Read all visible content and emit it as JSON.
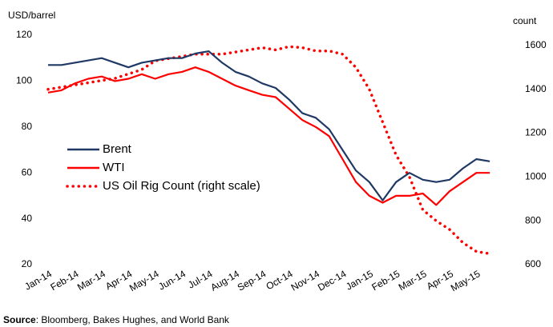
{
  "chart_data": {
    "type": "line",
    "y_axis_label": "USD/barrel",
    "y2_axis_label": "count",
    "categories": [
      "Jan-14",
      null,
      "Feb-14",
      null,
      "Mar-14",
      null,
      "Apr-14",
      null,
      "May-14",
      null,
      "Jun-14",
      null,
      "Jul-14",
      null,
      "Aug-14",
      null,
      "Sep-14",
      null,
      "Oct-14",
      null,
      "Nov-14",
      null,
      "Dec-14",
      null,
      "Jan-15",
      null,
      "Feb-15",
      null,
      "Mar-15",
      null,
      "Apr-15",
      null,
      "May-15",
      null
    ],
    "series": [
      {
        "name": "Brent",
        "color": "#1f3864",
        "values": [
          107,
          107,
          108,
          109,
          110,
          108,
          106,
          108,
          109,
          110,
          110,
          112,
          113,
          108,
          104,
          102,
          99,
          97,
          92,
          86,
          84,
          79,
          70,
          61,
          56,
          48,
          56,
          60,
          57,
          56,
          57,
          62,
          66,
          65
        ]
      },
      {
        "name": "WTI",
        "color": "#ff0000",
        "values": [
          95,
          96,
          99,
          101,
          102,
          100,
          101,
          103,
          101,
          103,
          104,
          106,
          104,
          101,
          98,
          96,
          94,
          93,
          88,
          83,
          80,
          76,
          66,
          56,
          50,
          47,
          50,
          50,
          51,
          46,
          52,
          56,
          60,
          60
        ]
      },
      {
        "name": "US Oil Rig Count (right scale)",
        "color": "#ff0000",
        "axis": "y2",
        "dotted": true,
        "values": [
          1400,
          1410,
          1420,
          1430,
          1440,
          1450,
          1470,
          1490,
          1530,
          1540,
          1550,
          1560,
          1560,
          1560,
          1570,
          1580,
          1590,
          1580,
          1595,
          1590,
          1575,
          1575,
          1560,
          1500,
          1400,
          1250,
          1100,
          1000,
          850,
          800,
          760,
          700,
          660,
          650
        ]
      }
    ],
    "ylim": [
      20,
      120
    ],
    "yticks": [
      20,
      40,
      60,
      80,
      100,
      120
    ],
    "y2lim": [
      600,
      1647
    ],
    "y2ticks": [
      600,
      800,
      1000,
      1200,
      1400,
      1600
    ],
    "legend": "left",
    "source_label": "Source",
    "source_text": ": Bloomberg, Bakes Hughes, and World Bank"
  }
}
